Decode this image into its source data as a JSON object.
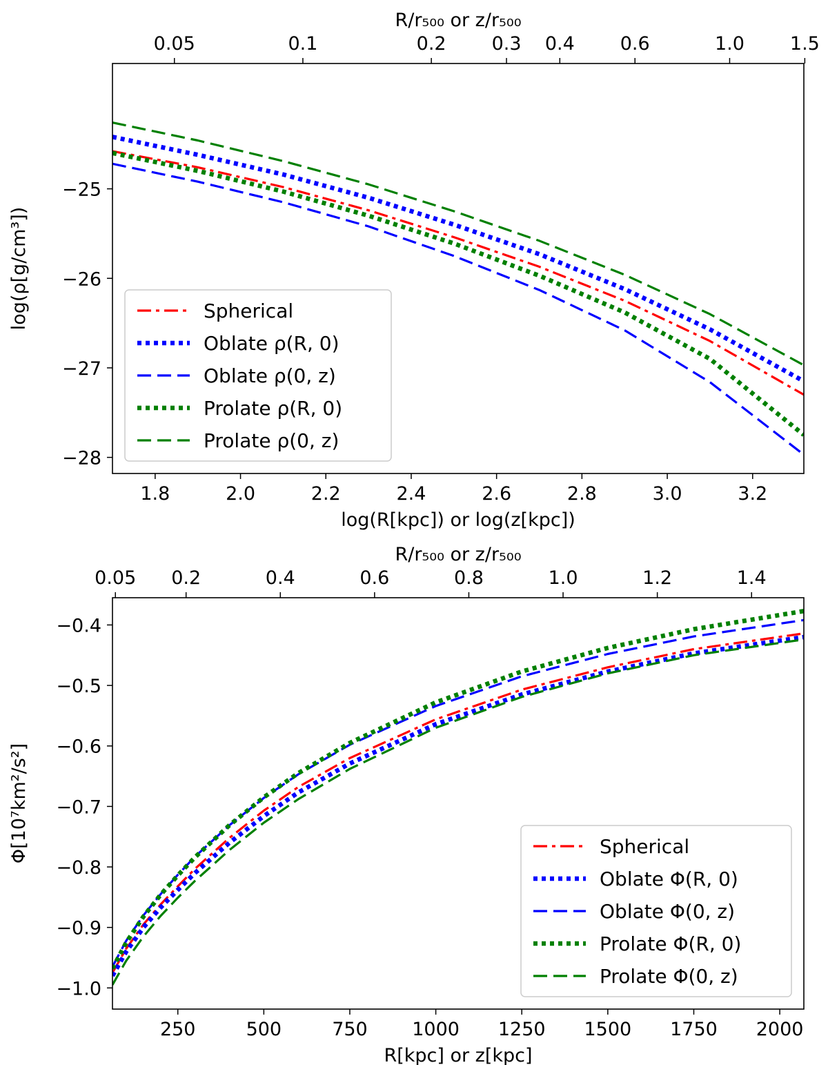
{
  "chart_data": [
    {
      "type": "line",
      "id": "density",
      "xlabel": "log(R[kpc]) or log(z[kpc])",
      "ylabel": "log(ρ[g/cm³])",
      "top_xlabel": "R/r₅₀₀ or z/r₅₀₀",
      "xlim": [
        1.7,
        3.32
      ],
      "ylim": [
        -28.18,
        -23.6
      ],
      "xticks": [
        1.8,
        2.0,
        2.2,
        2.4,
        2.6,
        2.8,
        3.0,
        3.2
      ],
      "xtick_labels": [
        "1.8",
        "2.0",
        "2.2",
        "2.4",
        "2.6",
        "2.8",
        "3.0",
        "3.2"
      ],
      "yticks": [
        -25,
        -26,
        -27,
        -28
      ],
      "ytick_labels": [
        "−25",
        "−26",
        "−27",
        "−28"
      ],
      "top_ticks": [
        0.05,
        0.1,
        0.2,
        0.3,
        0.4,
        0.6,
        1.0,
        1.5
      ],
      "top_tick_labels": [
        "0.05",
        "0.1",
        "0.2",
        "0.3",
        "0.4",
        "0.6",
        "1.0",
        "1.5"
      ],
      "legend_position": "lower-left",
      "series": [
        {
          "name": "Spherical",
          "color": "#ff0000",
          "style": "dashdot",
          "x": [
            1.7,
            1.9,
            2.1,
            2.3,
            2.5,
            2.7,
            2.9,
            3.1,
            3.32
          ],
          "y": [
            -24.58,
            -24.76,
            -24.98,
            -25.24,
            -25.54,
            -25.87,
            -26.25,
            -26.7,
            -27.3
          ]
        },
        {
          "name": "Oblate ρ(R, 0)",
          "color": "#0000ff",
          "style": "dotted",
          "x": [
            1.7,
            1.9,
            2.1,
            2.3,
            2.5,
            2.7,
            2.9,
            3.1,
            3.32
          ],
          "y": [
            -24.42,
            -24.62,
            -24.84,
            -25.1,
            -25.4,
            -25.73,
            -26.12,
            -26.57,
            -27.15
          ]
        },
        {
          "name": "Oblate ρ(0, z)",
          "color": "#0000ff",
          "style": "dashed",
          "x": [
            1.7,
            1.9,
            2.1,
            2.3,
            2.5,
            2.7,
            2.9,
            3.1,
            3.32
          ],
          "y": [
            -24.72,
            -24.92,
            -25.15,
            -25.42,
            -25.75,
            -26.13,
            -26.58,
            -27.16,
            -27.97
          ]
        },
        {
          "name": "Prolate ρ(R, 0)",
          "color": "#008000",
          "style": "dotted",
          "x": [
            1.7,
            1.9,
            2.1,
            2.3,
            2.5,
            2.7,
            2.9,
            3.1,
            3.32
          ],
          "y": [
            -24.6,
            -24.8,
            -25.03,
            -25.3,
            -25.61,
            -25.97,
            -26.38,
            -26.9,
            -27.75
          ]
        },
        {
          "name": "Prolate ρ(0, z)",
          "color": "#008000",
          "style": "dashed",
          "x": [
            1.7,
            1.9,
            2.1,
            2.3,
            2.5,
            2.7,
            2.9,
            3.1,
            3.32
          ],
          "y": [
            -24.26,
            -24.46,
            -24.69,
            -24.95,
            -25.25,
            -25.58,
            -25.96,
            -26.4,
            -26.97
          ]
        }
      ]
    },
    {
      "type": "line",
      "id": "potential",
      "xlabel": "R[kpc] or z[kpc]",
      "ylabel": "Φ[10⁷km²/s²]",
      "top_xlabel": "R/r₅₀₀ or z/r₅₀₀",
      "xlim": [
        60,
        2070
      ],
      "ylim": [
        -1.035,
        -0.355
      ],
      "xticks": [
        250,
        500,
        750,
        1000,
        1250,
        1500,
        1750,
        2000
      ],
      "xtick_labels": [
        "250",
        "500",
        "750",
        "1000",
        "1250",
        "1500",
        "1750",
        "2000"
      ],
      "yticks": [
        -0.4,
        -0.5,
        -0.6,
        -0.7,
        -0.8,
        -0.9,
        -1.0
      ],
      "ytick_labels": [
        "−0.4",
        "−0.5",
        "−0.6",
        "−0.7",
        "−0.8",
        "−0.9",
        "−1.0"
      ],
      "top_ticks": [
        0.05,
        0.2,
        0.4,
        0.6,
        0.8,
        1.0,
        1.2,
        1.4
      ],
      "top_tick_labels": [
        "0.05",
        "0.2",
        "0.4",
        "0.6",
        "0.8",
        "1.0",
        "1.2",
        "1.4"
      ],
      "legend_position": "lower-right",
      "series": [
        {
          "name": "Spherical",
          "color": "#ff0000",
          "style": "dashdot",
          "x": [
            60,
            100,
            150,
            200,
            250,
            300,
            400,
            500,
            600,
            750,
            1000,
            1250,
            1500,
            1750,
            2070
          ],
          "y": [
            -0.975,
            -0.935,
            -0.895,
            -0.862,
            -0.832,
            -0.803,
            -0.752,
            -0.707,
            -0.668,
            -0.62,
            -0.556,
            -0.507,
            -0.47,
            -0.44,
            -0.414
          ]
        },
        {
          "name": "Oblate Φ(R, 0)",
          "color": "#0000ff",
          "style": "dotted",
          "x": [
            60,
            100,
            150,
            200,
            250,
            300,
            400,
            500,
            600,
            750,
            1000,
            1250,
            1500,
            1750,
            2070
          ],
          "y": [
            -0.98,
            -0.94,
            -0.9,
            -0.867,
            -0.838,
            -0.81,
            -0.76,
            -0.716,
            -0.677,
            -0.629,
            -0.564,
            -0.515,
            -0.477,
            -0.447,
            -0.42
          ]
        },
        {
          "name": "Oblate Φ(0, z)",
          "color": "#0000ff",
          "style": "dashed",
          "x": [
            60,
            100,
            150,
            200,
            250,
            300,
            400,
            500,
            600,
            750,
            1000,
            1250,
            1500,
            1750,
            2070
          ],
          "y": [
            -0.965,
            -0.922,
            -0.88,
            -0.845,
            -0.813,
            -0.783,
            -0.731,
            -0.686,
            -0.647,
            -0.598,
            -0.534,
            -0.485,
            -0.448,
            -0.419,
            -0.392
          ]
        },
        {
          "name": "Prolate Φ(R, 0)",
          "color": "#008000",
          "style": "dotted",
          "x": [
            60,
            100,
            150,
            200,
            250,
            300,
            400,
            500,
            600,
            750,
            1000,
            1250,
            1500,
            1750,
            2070
          ],
          "y": [
            -0.968,
            -0.925,
            -0.882,
            -0.846,
            -0.814,
            -0.784,
            -0.731,
            -0.685,
            -0.645,
            -0.595,
            -0.528,
            -0.477,
            -0.438,
            -0.407,
            -0.377
          ]
        },
        {
          "name": "Prolate Φ(0, z)",
          "color": "#008000",
          "style": "dashed",
          "x": [
            60,
            100,
            150,
            200,
            250,
            300,
            400,
            500,
            600,
            750,
            1000,
            1250,
            1500,
            1750,
            2070
          ],
          "y": [
            -0.995,
            -0.955,
            -0.915,
            -0.881,
            -0.851,
            -0.823,
            -0.772,
            -0.727,
            -0.688,
            -0.638,
            -0.57,
            -0.519,
            -0.48,
            -0.45,
            -0.424
          ]
        }
      ]
    }
  ]
}
